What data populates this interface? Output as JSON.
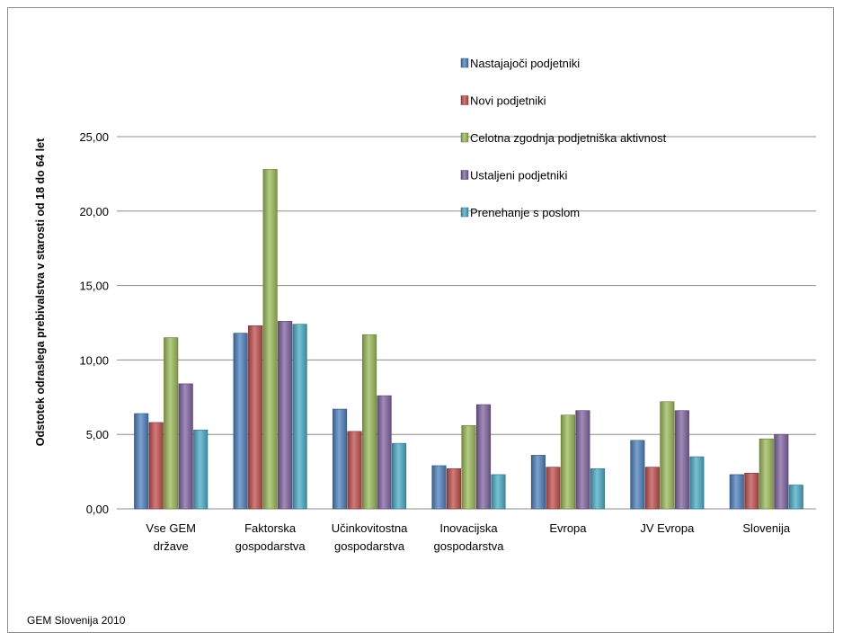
{
  "footer": "GEM Slovenija 2010",
  "chart_data": {
    "type": "bar",
    "title": "",
    "ylabel": "Odstotek odraslega prebivalstva v starosti od 18 do 64 let",
    "xlabel": "",
    "ylim": [
      0,
      25
    ],
    "yticks": [
      "0,00",
      "5,00",
      "10,00",
      "15,00",
      "20,00",
      "25,00"
    ],
    "legend_position": "top-right",
    "grid": true,
    "categories": [
      [
        "Vse GEM",
        "države"
      ],
      [
        "Faktorska",
        "gospodarstva"
      ],
      [
        "Učinkovitostna",
        "gospodarstva"
      ],
      [
        "Inovacijska",
        "gospodarstva"
      ],
      [
        "Evropa"
      ],
      [
        "JV Evropa"
      ],
      [
        "Slovenija"
      ]
    ],
    "series": [
      {
        "name": "Nastajajoči podjetniki",
        "color": "#4f81bd",
        "values": [
          6.4,
          11.8,
          6.7,
          2.9,
          3.6,
          4.6,
          2.3
        ]
      },
      {
        "name": "Novi podjetniki",
        "color": "#c0504d",
        "values": [
          5.8,
          12.3,
          5.2,
          2.7,
          2.8,
          2.8,
          2.4
        ]
      },
      {
        "name": "Celotna zgodnja podjetniška aktivnost",
        "color": "#9bbb59",
        "values": [
          11.5,
          22.8,
          11.7,
          5.6,
          6.3,
          7.2,
          4.7
        ]
      },
      {
        "name": "Ustaljeni podjetniki",
        "color": "#8064a2",
        "values": [
          8.4,
          12.6,
          7.6,
          7.0,
          6.6,
          6.6,
          5.0
        ]
      },
      {
        "name": "Prenehanje s poslom",
        "color": "#4bacc6",
        "values": [
          5.3,
          12.4,
          4.4,
          2.3,
          2.7,
          3.5,
          1.6
        ]
      }
    ]
  }
}
